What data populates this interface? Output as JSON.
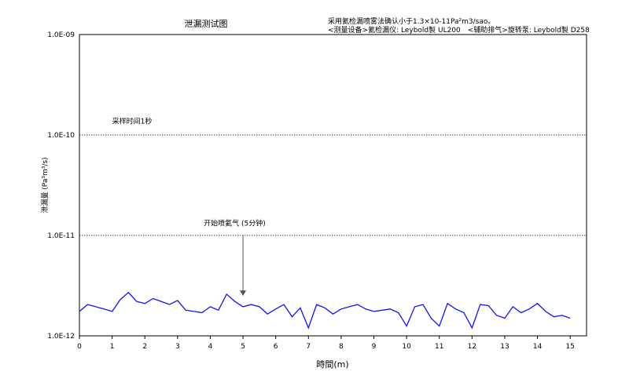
{
  "chart_data": {
    "type": "line",
    "title": "泄漏测试图",
    "subtitle_lines": [
      "采用氦检漏喷雾法确认小于1.3×10-11Pa²m3/sao。",
      "<测量设备>氦检漏仪: Leybold製 UL200　<辅助排气>旋转泵: Leybold製 D258"
    ],
    "xlabel": "時間(m)",
    "ylabel": "泄漏量 (Pa³m³/s)",
    "xlim": [
      0,
      15.5
    ],
    "ylim": [
      1e-12,
      1e-09
    ],
    "y_scale": "log",
    "x_ticks": [
      0,
      1,
      2,
      3,
      4,
      5,
      6,
      7,
      8,
      9,
      10,
      11,
      12,
      13,
      14,
      15
    ],
    "y_ticks": [
      {
        "value": 1e-09,
        "label": "1.0E-09"
      },
      {
        "value": 1e-10,
        "label": "1.0E-10"
      },
      {
        "value": 1e-11,
        "label": "1.0E-11"
      },
      {
        "value": 1e-12,
        "label": "1.0E-12"
      }
    ],
    "grid": "horizontal dotted at decades",
    "line_color": "#1414e6",
    "annotations": [
      {
        "text": "采样时间1秒",
        "x": 1.0,
        "y": 1.3e-10
      },
      {
        "text": "开始喷氦气 (5分钟)",
        "x": 3.8,
        "y": 1.25e-11,
        "arrow_from": [
          5.0,
          1e-11
        ],
        "arrow_to": [
          5.0,
          2.5e-12
        ]
      }
    ],
    "series": [
      {
        "x": [
          0.0,
          0.25,
          0.5,
          0.75,
          1.0,
          1.25,
          1.5,
          1.75,
          2.0,
          2.25,
          2.5,
          2.75,
          3.0,
          3.25,
          3.5,
          3.75,
          4.0,
          4.25,
          4.5,
          4.75,
          5.0,
          5.25,
          5.5,
          5.75,
          6.0,
          6.25,
          6.5,
          6.75,
          7.0,
          7.25,
          7.5,
          7.75,
          8.0,
          8.25,
          8.5,
          8.75,
          9.0,
          9.25,
          9.5,
          9.75,
          10.0,
          10.25,
          10.5,
          10.75,
          11.0,
          11.25,
          11.5,
          11.75,
          12.0,
          12.25,
          12.5,
          12.75,
          13.0,
          13.25,
          13.5,
          13.75,
          14.0,
          14.25,
          14.5,
          14.75,
          15.0
        ],
        "y": [
          1.75e-12,
          2.05e-12,
          1.95e-12,
          1.85e-12,
          1.75e-12,
          2.3e-12,
          2.7e-12,
          2.2e-12,
          2.1e-12,
          2.35e-12,
          2.2e-12,
          2.05e-12,
          2.25e-12,
          1.8e-12,
          1.75e-12,
          1.7e-12,
          1.95e-12,
          1.8e-12,
          2.6e-12,
          2.2e-12,
          1.95e-12,
          2.05e-12,
          1.95e-12,
          1.65e-12,
          1.85e-12,
          2.05e-12,
          1.55e-12,
          1.9e-12,
          1.2e-12,
          2.05e-12,
          1.9e-12,
          1.65e-12,
          1.85e-12,
          1.95e-12,
          2.05e-12,
          1.85e-12,
          1.75e-12,
          1.8e-12,
          1.85e-12,
          1.7e-12,
          1.25e-12,
          1.95e-12,
          2.05e-12,
          1.5e-12,
          1.25e-12,
          2.1e-12,
          1.85e-12,
          1.7e-12,
          1.2e-12,
          2.05e-12,
          2e-12,
          1.6e-12,
          1.5e-12,
          1.95e-12,
          1.7e-12,
          1.85e-12,
          2.1e-12,
          1.75e-12,
          1.55e-12,
          1.6e-12,
          1.5e-12
        ]
      }
    ]
  }
}
